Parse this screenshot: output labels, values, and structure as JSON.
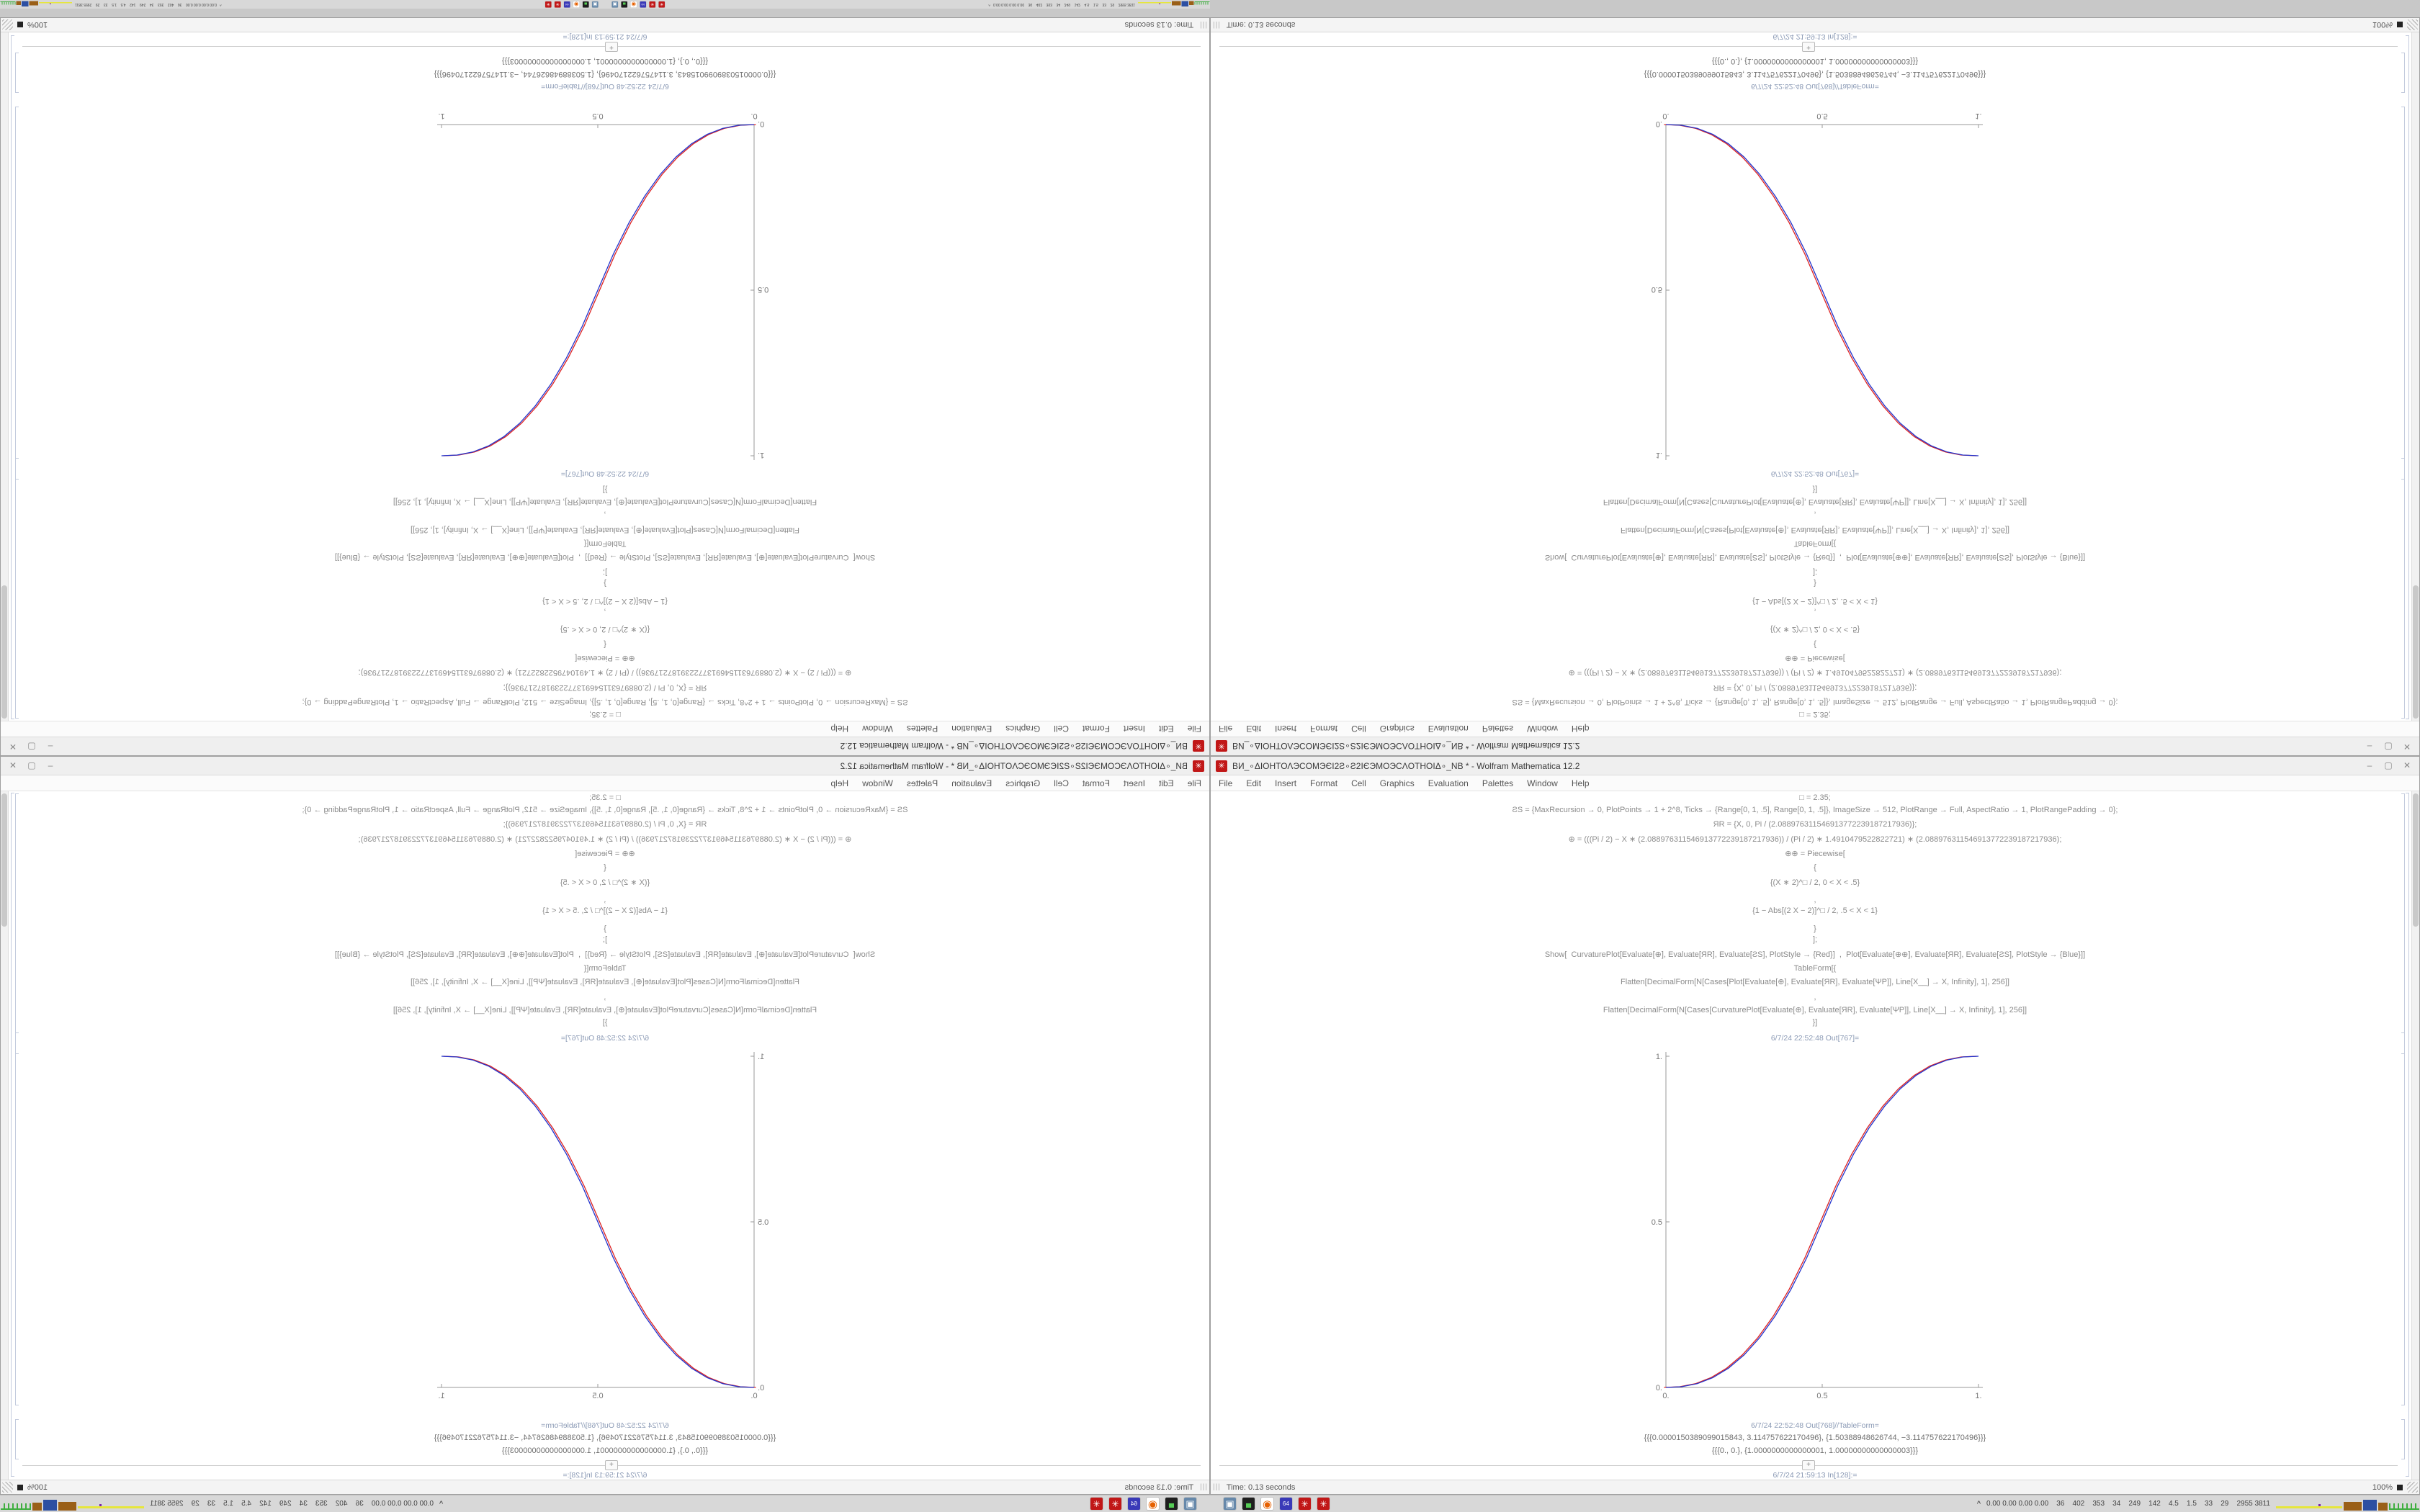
{
  "window": {
    "title": "ВИ_∘ΔΙΟΗΤΟΛЭCOMЭЄI2Ƨ∘Ƨ2IЄЭMOЭCΛOTHOIΔ∘_NB * - Wolfram Mathematica 12.2",
    "app_icon": "✳",
    "menu": [
      "File",
      "Edit",
      "Insert",
      "Format",
      "Cell",
      "Graphics",
      "Evaluation",
      "Palettes",
      "Window",
      "Help"
    ],
    "controls": {
      "minimize": "–",
      "maximize": "▢",
      "close": "✕"
    },
    "status": {
      "grip": "|||",
      "time": "Time: 0.13 seconds",
      "zoom": "100%"
    }
  },
  "notebook": {
    "input_lines": [
      "□ = 2.35;",
      "ƧS = {MaxRecursion → 0, PlotPoints → 1 + 2^8, Ticks → {Range[0, 1, .5], Range[0, 1, .5]}, ImageSize → 512, PlotRange → Full, AspectRatio → 1, PlotRangePadding → 0};",
      "ЯR = {X, 0, Pi / (2.088976311546913772239187217936)};",
      "⊕ = (((Pi / 2) − X ∗ (2.088976311546913772239187217936)) / (Pi / 2) ∗ 1.4910479522822721) ∗ (2.088976311546913772239187217936);",
      "⊕⊕ = Piecewise[",
      "{",
      "{(X ∗ 2)^□ / 2, 0 < X < .5}",
      ",",
      "{1 − Abs[(2 X − 2)]^□ / 2, .5 < X < 1}",
      "}",
      "];",
      "Show[  CurvaturePlot[Evaluate[⊕], Evaluate[ЯR], Evaluate[ƧS], PlotStyle → {Red}]  ,  Plot[Evaluate[⊕⊕], Evaluate[ЯR], Evaluate[ƧS], PlotStyle → {Blue}]]",
      "TableForm[{",
      "Flatten[DecimalForm[N[Cases[Plot[Evaluate[⊕], Evaluate[ЯR], Evaluate[ΨΡ]], Line[X__] → X, Infinity], 1], 256]]",
      ",",
      "Flatten[DecimalForm[N[Cases[CurvaturePlot[Evaluate[⊕], Evaluate[ЯR], Evaluate[ΨΡ]], Line[X__] → X, Infinity], 1], 256]]",
      "}]"
    ],
    "out1_label": "6/7/24 22:52:48 Out[767]=",
    "out2_label": "6/7/24 22:52:48 Out[768]//TableForm=",
    "out2_lines": [
      "{{{0.0000150389099015843, 3.114757622170496}, {1.50388948626744, −3.114757622170496}}}",
      "{{{0., 0.}, {1.0000000000000001, 1.00000000000000003}}}"
    ],
    "next_in_label": "6/7/24 21:59:13 In[128]:=",
    "insert_plus": "+"
  },
  "chart_data": {
    "type": "line",
    "title": "",
    "xlabel": "",
    "ylabel": "",
    "xlim": [
      0,
      1
    ],
    "ylim": [
      0,
      1
    ],
    "xticks": [
      "0.",
      "0.5",
      "1."
    ],
    "yticks": [
      "0.",
      "0.5",
      "1."
    ],
    "grid": false,
    "legend_position": "none",
    "x": [
      0,
      0.05,
      0.1,
      0.15,
      0.2,
      0.25,
      0.3,
      0.35,
      0.4,
      0.45,
      0.5,
      0.55,
      0.6,
      0.65,
      0.7,
      0.75,
      0.8,
      0.85,
      0.9,
      0.95,
      1
    ],
    "series": [
      {
        "name": "CurvaturePlot (Red)",
        "color": "#dd2222",
        "values": [
          0,
          0.0022,
          0.0114,
          0.0295,
          0.058,
          0.098,
          0.1505,
          0.2163,
          0.296,
          0.3904,
          0.5,
          0.6096,
          0.704,
          0.7837,
          0.8495,
          0.902,
          0.942,
          0.9705,
          0.9886,
          0.9978,
          1
        ]
      },
      {
        "name": "Plot (Blue)",
        "color": "#2233cc",
        "values": [
          0,
          0.0022,
          0.0114,
          0.0295,
          0.058,
          0.098,
          0.1505,
          0.2163,
          0.296,
          0.3904,
          0.5,
          0.6096,
          0.704,
          0.7837,
          0.8495,
          0.902,
          0.942,
          0.9705,
          0.9886,
          0.9978,
          1
        ]
      }
    ]
  },
  "taskbar": {
    "icons": [
      {
        "name": "display-icon",
        "glyph": "▣",
        "fg": "#ffffff",
        "bg": "#6688aa",
        "size": "13px"
      },
      {
        "name": "terminal-icon",
        "glyph": "▄",
        "fg": "#55cc55",
        "bg": "#1e1e1e",
        "size": "10px"
      },
      {
        "name": "firefox-icon",
        "glyph": "◉",
        "fg": "#e66000",
        "bg": "#ffffff",
        "size": "15px"
      },
      {
        "name": "floppy-64-icon",
        "glyph": "64",
        "fg": "#ffffff",
        "bg": "#3a3ab8",
        "size": "8px"
      },
      {
        "name": "spikey-icon",
        "glyph": "✳",
        "fg": "#ffffff",
        "bg": "#c11717",
        "size": "12px"
      },
      {
        "name": "spikey-icon",
        "glyph": "✳",
        "fg": "#ffffff",
        "bg": "#c11717",
        "size": "12px"
      }
    ],
    "tray": {
      "expand": "^",
      "values": "0.00 0.00 0.00 0.00    36    402    353    34    249    142    4.5    1.5    33    29    2955 3811"
    },
    "spark_colors": {
      "yellow": "#e6e63c",
      "brown": "#9a5f17",
      "blue": "#2d4fa2",
      "green": "#3fae3f",
      "purple": "#7a24aa"
    }
  },
  "colors": {
    "desktop": "#c8c8c8",
    "taskbar_bg": "#d8d8d8",
    "accent_red": "#c11717",
    "curve_red": "#dd2222",
    "curve_blue": "#2233cc",
    "cell_label": "#8b9ab5"
  }
}
